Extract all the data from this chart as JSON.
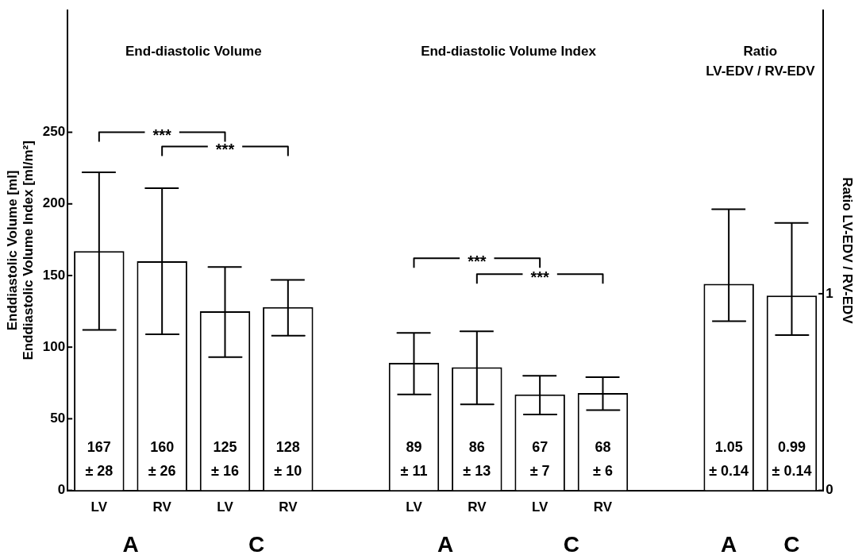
{
  "chart_data": {
    "type": "bar",
    "categories": [
      "LV",
      "RV",
      "LV",
      "RV",
      null,
      "LV",
      "RV",
      "LV",
      "RV",
      null,
      null,
      null
    ],
    "series": [
      {
        "color": "#ffffff",
        "values": [
          167,
          160,
          125,
          128,
          null,
          89,
          86,
          67,
          68,
          null,
          null,
          null
        ],
        "errors": [
          [
            112,
            222
          ],
          [
            109,
            211
          ],
          [
            93,
            156
          ],
          [
            108,
            147
          ],
          null,
          [
            67,
            110
          ],
          [
            60,
            111
          ],
          [
            53,
            80
          ],
          [
            56,
            79
          ],
          null,
          null,
          null
        ],
        "value_labels": [
          "167\n± 28",
          "160\n± 26",
          "125\n± 16",
          "128\n± 10",
          null,
          "89\n± 11",
          "86\n± 13",
          "67\n± 7",
          "68\n± 6",
          null,
          null,
          null
        ]
      },
      {
        "color": "#ffffff",
        "axis": "y2",
        "values": [
          null,
          null,
          null,
          null,
          null,
          null,
          null,
          null,
          null,
          null,
          1.05,
          0.99
        ],
        "errors": [
          null,
          null,
          null,
          null,
          null,
          null,
          null,
          null,
          null,
          null,
          [
            0.86,
            1.43
          ],
          [
            0.79,
            1.36
          ]
        ],
        "value_labels": [
          null,
          null,
          null,
          null,
          null,
          null,
          null,
          null,
          null,
          null,
          "1.05\n± 0.14",
          "0.99\n± 0.14"
        ]
      }
    ],
    "ylabel": "Enddiastolic Volume [ml]\nEnddiastolic Volume Index [ml/m²]",
    "y2label": "Ratio LV-EDV / RV-EDV",
    "ylim": [
      0,
      335
    ],
    "yticks": [
      0,
      50,
      100,
      150,
      200,
      250
    ],
    "y2lim": [
      0,
      2.44
    ],
    "y2ticks": [
      0,
      1
    ],
    "annotations": [
      "End-diastolic Volume",
      "End-diastolic Volume Index",
      "Ratio\nLV-EDV / RV-EDV",
      "***",
      "***",
      "***",
      "***",
      "A",
      "C",
      "A",
      "C",
      "A",
      "C"
    ],
    "grid": false,
    "legend": false
  }
}
